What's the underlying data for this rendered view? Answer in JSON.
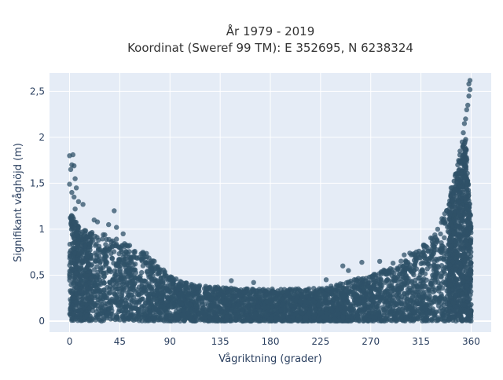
{
  "chart_data": {
    "type": "scatter",
    "title_lines": [
      "År 1979 - 2019",
      "Koordinat (Sweref 99 TM): E 352695, N 6238324"
    ],
    "xlabel": "Vågriktning (grader)",
    "ylabel": "Signifikant våghöjd (m)",
    "xlim": [
      -18,
      378
    ],
    "ylim": [
      -0.12,
      2.7
    ],
    "x_ticks": [
      0,
      45,
      90,
      135,
      180,
      225,
      270,
      315,
      360
    ],
    "x_tick_labels": [
      "0",
      "45",
      "90",
      "135",
      "180",
      "225",
      "270",
      "315",
      "360"
    ],
    "y_ticks": [
      0,
      0.5,
      1,
      1.5,
      2,
      2.5
    ],
    "y_tick_labels": [
      "0",
      "0,5",
      "1",
      "1,5",
      "2",
      "2,5"
    ],
    "grid": true,
    "marker_color": "#2f5168",
    "plot_background": "#e5ecf6",
    "upper_envelope": {
      "x": [
        0,
        5,
        10,
        20,
        30,
        45,
        60,
        70,
        80,
        90,
        100,
        110,
        120,
        135,
        150,
        165,
        180,
        200,
        225,
        240,
        250,
        260,
        270,
        280,
        290,
        300,
        310,
        320,
        330,
        340,
        345,
        350,
        355,
        360
      ],
      "y": [
        1.2,
        1.1,
        1.0,
        0.98,
        0.95,
        0.88,
        0.8,
        0.74,
        0.6,
        0.5,
        0.43,
        0.4,
        0.38,
        0.37,
        0.36,
        0.35,
        0.35,
        0.35,
        0.36,
        0.4,
        0.43,
        0.47,
        0.5,
        0.55,
        0.6,
        0.68,
        0.76,
        0.86,
        1.0,
        1.3,
        1.55,
        1.85,
        2.0,
        1.05
      ]
    },
    "outliers": [
      {
        "x": 0,
        "y": 1.8
      },
      {
        "x": 3,
        "y": 1.81
      },
      {
        "x": 2,
        "y": 1.7
      },
      {
        "x": 4,
        "y": 1.69
      },
      {
        "x": 1,
        "y": 1.65
      },
      {
        "x": 5,
        "y": 1.55
      },
      {
        "x": 0,
        "y": 1.49
      },
      {
        "x": 6,
        "y": 1.45
      },
      {
        "x": 4,
        "y": 1.35
      },
      {
        "x": 2,
        "y": 1.4
      },
      {
        "x": 8,
        "y": 1.3
      },
      {
        "x": 12,
        "y": 1.27
      },
      {
        "x": 5,
        "y": 1.22
      },
      {
        "x": 40,
        "y": 1.2
      },
      {
        "x": 25,
        "y": 1.08
      },
      {
        "x": 35,
        "y": 1.05
      },
      {
        "x": 42,
        "y": 1.02
      },
      {
        "x": 22,
        "y": 1.1
      },
      {
        "x": 48,
        "y": 0.95
      },
      {
        "x": 145,
        "y": 0.44
      },
      {
        "x": 165,
        "y": 0.42
      },
      {
        "x": 230,
        "y": 0.45
      },
      {
        "x": 245,
        "y": 0.6
      },
      {
        "x": 250,
        "y": 0.55
      },
      {
        "x": 262,
        "y": 0.64
      },
      {
        "x": 278,
        "y": 0.65
      },
      {
        "x": 290,
        "y": 0.63
      },
      {
        "x": 300,
        "y": 0.72
      },
      {
        "x": 305,
        "y": 0.74
      },
      {
        "x": 318,
        "y": 0.8
      },
      {
        "x": 325,
        "y": 0.9
      },
      {
        "x": 330,
        "y": 1.0
      },
      {
        "x": 335,
        "y": 1.1
      },
      {
        "x": 338,
        "y": 1.2
      },
      {
        "x": 342,
        "y": 1.45
      },
      {
        "x": 346,
        "y": 1.6
      },
      {
        "x": 348,
        "y": 1.7
      },
      {
        "x": 350,
        "y": 1.85
      },
      {
        "x": 352,
        "y": 1.95
      },
      {
        "x": 353,
        "y": 2.05
      },
      {
        "x": 354,
        "y": 2.15
      },
      {
        "x": 355,
        "y": 2.2
      },
      {
        "x": 356,
        "y": 2.3
      },
      {
        "x": 357,
        "y": 2.35
      },
      {
        "x": 358,
        "y": 2.45
      },
      {
        "x": 359,
        "y": 2.52
      },
      {
        "x": 358,
        "y": 2.58
      },
      {
        "x": 359,
        "y": 2.62
      }
    ]
  }
}
